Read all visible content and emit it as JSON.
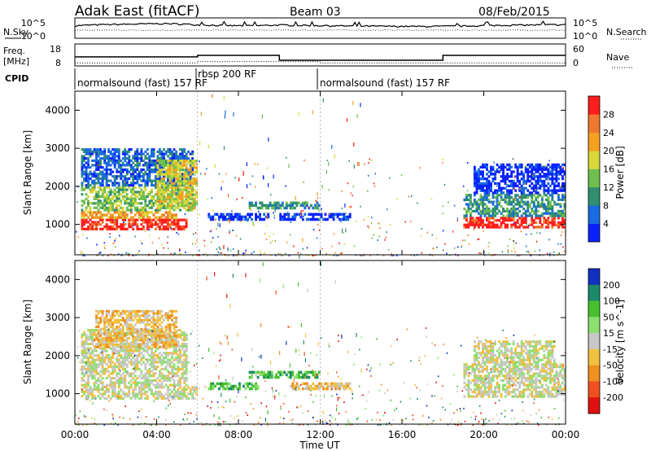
{
  "header": {
    "radar": "Adak East (fitACF)",
    "beam": "Beam 03",
    "date": "08/Feb/2015"
  },
  "left_labels": {
    "nsky": "N.Sky",
    "freq_line1": "Freq.",
    "freq_line2": "[MHz]",
    "cpid": "CPID"
  },
  "right_labels": {
    "nsearch": "N.Search",
    "nave": "Nave"
  },
  "cpid_labels": [
    "normalsound (fast) 157 RF",
    "rbsp 200 RF",
    "normalsound (fast) 157 RF"
  ],
  "chart_data": [
    {
      "type": "line",
      "name": "noise_panel",
      "ylim_left": [
        1,
        100000
      ],
      "y_scale": "log",
      "left_ticks": [
        "10^5",
        "10^0"
      ],
      "right_ticks": [
        "10^5",
        "10^0"
      ],
      "x_hours": [
        0,
        1,
        2,
        3,
        4,
        5,
        6,
        7,
        8,
        9,
        10,
        11,
        12,
        13,
        14,
        15,
        16,
        17,
        18,
        19,
        20,
        21,
        22,
        23,
        24
      ],
      "nsky": [
        1200,
        2000,
        2600,
        3000,
        4000,
        3500,
        2000,
        1500,
        1200,
        1300,
        1800,
        1500,
        1300,
        1100,
        1000,
        900,
        850,
        800,
        900,
        1000,
        1300,
        1600,
        1800,
        2000,
        2200
      ],
      "grid": false
    },
    {
      "type": "line",
      "name": "frequency_panel",
      "left_ticks": [
        "18",
        "8"
      ],
      "right_ticks": [
        "60",
        "0"
      ],
      "ylim_left": [
        8,
        18
      ],
      "ylim_right": [
        0,
        60
      ],
      "freq_segments": [
        {
          "start": 0,
          "end": 6,
          "mhz": 12.1
        },
        {
          "start": 6,
          "end": 10,
          "mhz": 12.8
        },
        {
          "start": 10,
          "end": 18,
          "mhz": 10.6
        },
        {
          "start": 18,
          "end": 24,
          "mhz": 12.8
        }
      ],
      "nave_segments": [
        {
          "start": 0,
          "end": 6,
          "value": 8
        },
        {
          "start": 6,
          "end": 12,
          "value": 12
        },
        {
          "start": 12,
          "end": 24,
          "value": 8
        }
      ]
    },
    {
      "type": "heatmap",
      "name": "power_panel",
      "ylabel": "Slant Range [km]",
      "yticks": [
        1000,
        2000,
        3000,
        4000
      ],
      "ylim": [
        200,
        4500
      ],
      "xlim": [
        0,
        24
      ],
      "colorbar_label": "Power [dB]",
      "colorbar_ticks": [
        "4",
        "8",
        "12",
        "16",
        "20",
        "24",
        "28"
      ],
      "colors": [
        "#0a22ff",
        "#1b6be0",
        "#2f8f6f",
        "#6fbf4f",
        "#d8d83a",
        "#f5a020",
        "#f07830",
        "#ff1e1e"
      ],
      "blobs": [
        {
          "t0": 0.3,
          "t1": 5.5,
          "r0": 850,
          "r1": 1150,
          "level": 7
        },
        {
          "t0": 0.3,
          "t1": 5.0,
          "r0": 1150,
          "r1": 1350,
          "level": 5
        },
        {
          "t0": 0.3,
          "t1": 5.8,
          "r0": 1350,
          "r1": 2000,
          "level": 3
        },
        {
          "t0": 0.3,
          "t1": 5.8,
          "r0": 2000,
          "r1": 3000,
          "level": 1
        },
        {
          "t0": 4.0,
          "t1": 6.0,
          "r0": 1400,
          "r1": 2700,
          "level": 4
        },
        {
          "t0": 6.5,
          "t1": 9.5,
          "r0": 1100,
          "r1": 1300,
          "level": 0
        },
        {
          "t0": 8.5,
          "t1": 12.0,
          "r0": 1400,
          "r1": 1600,
          "level": 2
        },
        {
          "t0": 10.0,
          "t1": 13.5,
          "r0": 1100,
          "r1": 1300,
          "level": 0
        },
        {
          "t0": 19.0,
          "t1": 24.0,
          "r0": 900,
          "r1": 1200,
          "level": 7
        },
        {
          "t0": 19.0,
          "t1": 24.0,
          "r0": 1200,
          "r1": 1800,
          "level": 2
        },
        {
          "t0": 19.5,
          "t1": 24.0,
          "r0": 1800,
          "r1": 2600,
          "level": 0
        }
      ]
    },
    {
      "type": "heatmap",
      "name": "velocity_panel",
      "ylabel": "Slant Range [km]",
      "yticks": [
        1000,
        2000,
        3000,
        4000
      ],
      "ylim": [
        200,
        4500
      ],
      "xlim": [
        0,
        24
      ],
      "colorbar_label": "Velocity [m s^-1]",
      "colorbar_ticks": [
        "200",
        "100",
        "50",
        "15",
        "-15",
        "-50",
        "-100",
        "-200"
      ],
      "colors": [
        "#1030c0",
        "#1a8a6a",
        "#47c030",
        "#8de070",
        "#c8c8c8",
        "#f0c040",
        "#f09020",
        "#f05020",
        "#e01010"
      ],
      "blobs": [
        {
          "t0": 0.3,
          "t1": 6.0,
          "r0": 850,
          "r1": 1200,
          "level": 4
        },
        {
          "t0": 0.3,
          "t1": 5.5,
          "r0": 1200,
          "r1": 2700,
          "level": 4
        },
        {
          "t0": 1.0,
          "t1": 5.0,
          "r0": 2200,
          "r1": 3200,
          "level": 5
        },
        {
          "t0": 6.5,
          "t1": 9.0,
          "r0": 1100,
          "r1": 1300,
          "level": 2
        },
        {
          "t0": 8.5,
          "t1": 12.0,
          "r0": 1400,
          "r1": 1600,
          "level": 2
        },
        {
          "t0": 10.5,
          "t1": 13.5,
          "r0": 1100,
          "r1": 1300,
          "level": 5
        },
        {
          "t0": 19.0,
          "t1": 24.0,
          "r0": 900,
          "r1": 1800,
          "level": 4
        },
        {
          "t0": 19.5,
          "t1": 23.5,
          "r0": 1800,
          "r1": 2400,
          "level": 4
        }
      ]
    }
  ],
  "x_axis": {
    "xlabel": "Time UT",
    "ticks": [
      "00:00",
      "04:00",
      "08:00",
      "12:00",
      "16:00",
      "20:00",
      "00:00"
    ],
    "tick_hours": [
      0,
      4,
      8,
      12,
      16,
      20,
      24
    ]
  }
}
